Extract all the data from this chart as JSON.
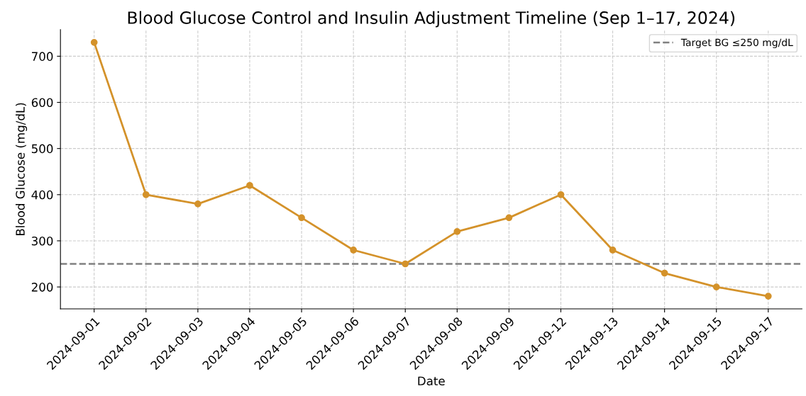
{
  "chart_data": {
    "type": "line",
    "title": "Blood Glucose Control and Insulin Adjustment Timeline (Sep 1–17, 2024)",
    "xlabel": "Date",
    "ylabel": "Blood Glucose (mg/dL)",
    "categories": [
      "2024-09-01",
      "2024-09-02",
      "2024-09-03",
      "2024-09-04",
      "2024-09-05",
      "2024-09-06",
      "2024-09-07",
      "2024-09-08",
      "2024-09-09",
      "2024-09-12",
      "2024-09-13",
      "2024-09-14",
      "2024-09-15",
      "2024-09-17"
    ],
    "series": [
      {
        "color": "#d4922a",
        "values": [
          730,
          400,
          380,
          420,
          350,
          280,
          250,
          320,
          350,
          400,
          280,
          230,
          200,
          180
        ]
      }
    ],
    "ylim": [
      152.5,
      757.5
    ],
    "yticks": [
      200,
      300,
      400,
      500,
      600,
      700
    ],
    "ref_lines": [
      {
        "axis": "y",
        "value": 250,
        "label": "Target BG ≤250 mg/dL",
        "color": "#808080",
        "line_style": "dashed"
      }
    ],
    "grid": true,
    "legend": "top right",
    "marker": "circle",
    "line_style": "solid"
  }
}
